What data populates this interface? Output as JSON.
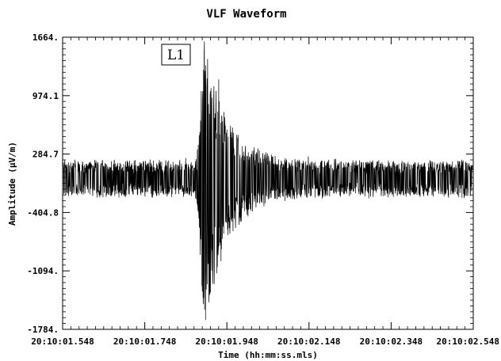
{
  "chart_data": {
    "type": "line",
    "title": "VLF Waveform",
    "xlabel": "Time (hh:mm:ss.mls)",
    "ylabel": "Amplitude (μV/m)",
    "x_tick_labels": [
      "20:10:01.548",
      "20:10:01.748",
      "20:10:01.948",
      "20:10:02.148",
      "20:10:02.348",
      "20:10:02.548"
    ],
    "y_tick_labels": [
      "1664.",
      "974.1",
      "284.7",
      "-404.8",
      "-1094.",
      "-1784."
    ],
    "y_ticks": [
      1664,
      974.1,
      284.7,
      -404.8,
      -1094,
      -1784
    ],
    "ylim": [
      -1784,
      1664
    ],
    "grid": false,
    "annotation": {
      "text": "L1"
    },
    "series": [
      {
        "baseline_envelope": [
          200,
          -210
        ],
        "burst_peak": [
          1664,
          -1784
        ]
      }
    ]
  }
}
